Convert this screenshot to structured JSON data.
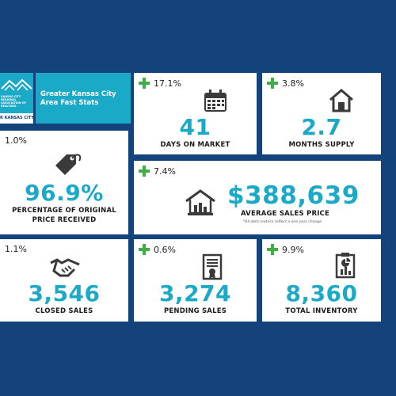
{
  "header": {
    "title": "Greater Kansas City Area Fast Stats",
    "logo_small": "KANSAS CITY REGIONAL ASSOCIATION OF REALTORS · HEARTLAND MLS",
    "logo_strip": "R KANSAS CITY"
  },
  "stats": [
    {
      "id": "days_on_market",
      "change": "17.1%",
      "value": "41",
      "label": "DAYS ON MARKET",
      "icon": "calendar-icon"
    },
    {
      "id": "months_supply",
      "change": "3.8%",
      "value": "2.7",
      "label": "MONTHS SUPPLY",
      "icon": "house-icon"
    },
    {
      "id": "pct_original_price",
      "change": "1.0%",
      "value": "96.9%",
      "label_line1": "PERCENTAGE OF ORIGINAL",
      "label_line2": "PRICE RECEIVED",
      "icon": "price-tag-icon"
    },
    {
      "id": "avg_sales_price",
      "change": "7.4%",
      "value": "$388,639",
      "label": "AVERAGE SALES PRICE",
      "note": "*All data metrics reflect a one year change",
      "icon": "house-chart-icon"
    },
    {
      "id": "closed_sales",
      "change": "1.1%",
      "value": "3,546",
      "label": "CLOSED SALES",
      "icon": "handshake-icon"
    },
    {
      "id": "pending_sales",
      "change": "0.6%",
      "value": "3,274",
      "label": "PENDING SALES",
      "icon": "document-icon"
    },
    {
      "id": "total_inventory",
      "change": "9.9%",
      "value": "8,360",
      "label": "TOTAL INVENTORY",
      "icon": "clipboard-chart-icon"
    }
  ],
  "colors": {
    "background": "#14427a",
    "accent": "#1aaac8",
    "positive": "#3fae49",
    "card": "#ffffff",
    "icon": "#3a3a3a"
  }
}
